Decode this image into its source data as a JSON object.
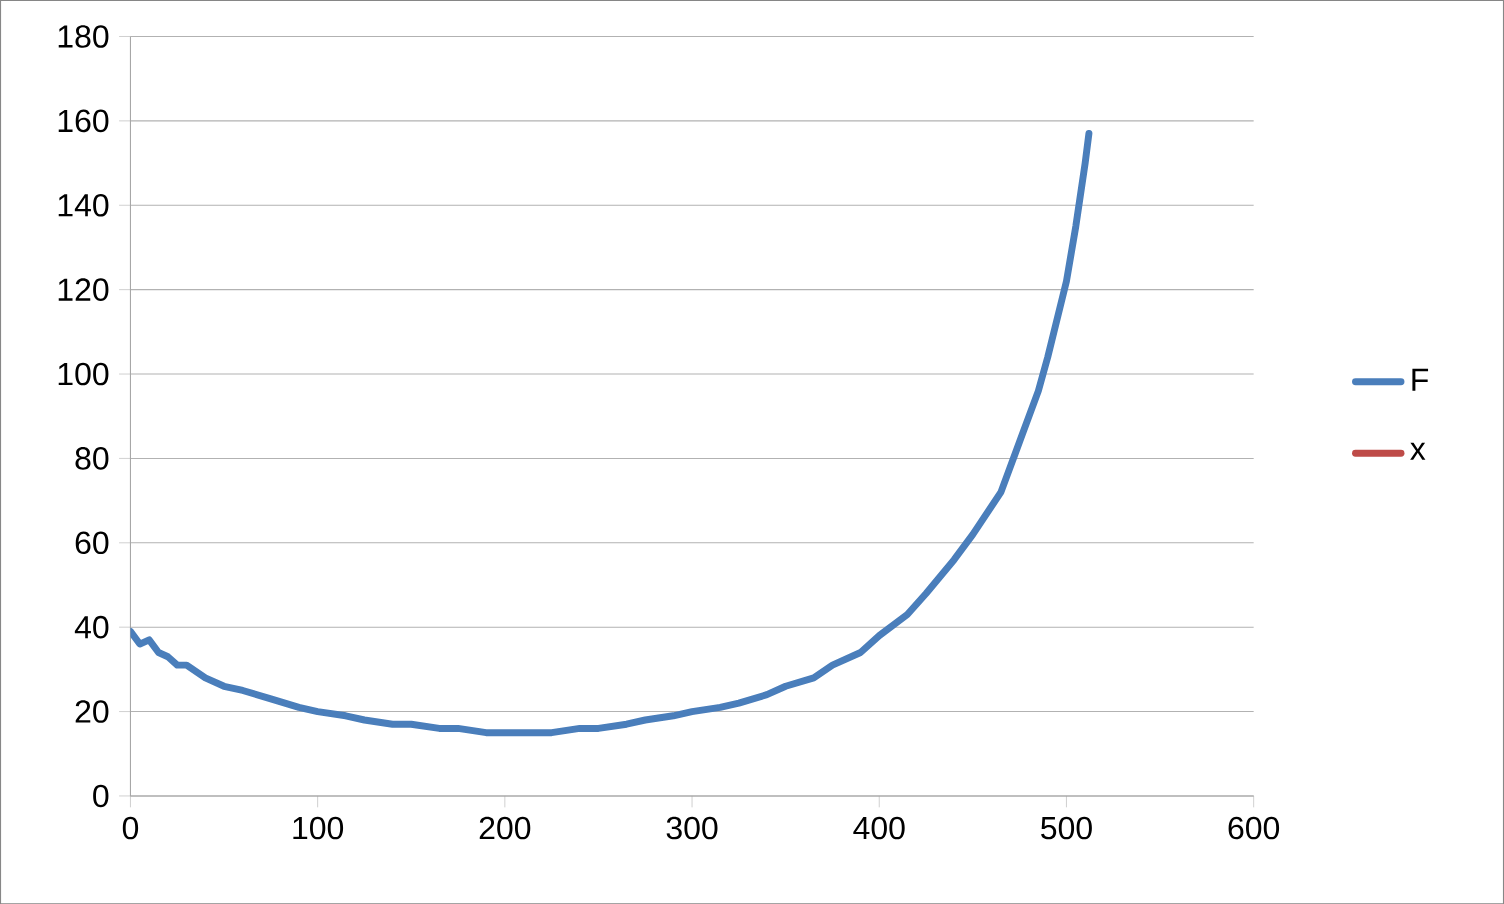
{
  "chart_data": {
    "type": "line",
    "x": [
      0,
      5,
      10,
      15,
      20,
      25,
      30,
      40,
      50,
      60,
      75,
      90,
      100,
      115,
      125,
      140,
      150,
      165,
      175,
      190,
      200,
      210,
      225,
      240,
      250,
      265,
      275,
      290,
      300,
      315,
      325,
      340,
      350,
      365,
      375,
      390,
      400,
      415,
      425,
      440,
      450,
      465,
      475,
      485,
      490,
      500,
      505,
      510,
      512
    ],
    "series": [
      {
        "name": "F",
        "color": "#4a7ebb",
        "values": [
          39,
          36,
          37,
          34,
          33,
          31,
          31,
          28,
          26,
          25,
          23,
          21,
          20,
          19,
          18,
          17,
          17,
          16,
          16,
          15,
          15,
          15,
          15,
          16,
          16,
          17,
          18,
          19,
          20,
          21,
          22,
          24,
          26,
          28,
          31,
          34,
          38,
          43,
          48,
          56,
          62,
          72,
          84,
          96,
          104,
          122,
          135,
          150,
          157
        ]
      },
      {
        "name": "x",
        "color": "#be4b48",
        "values": [
          null,
          null,
          null,
          null,
          null,
          null,
          null,
          null,
          null,
          null,
          null,
          null,
          null,
          null,
          null,
          null,
          null,
          null,
          null,
          null,
          null,
          null,
          null,
          null,
          null,
          null,
          null,
          null,
          null,
          null,
          null,
          null,
          null,
          null,
          null,
          null,
          null,
          null,
          null,
          null,
          null,
          null,
          null,
          null,
          null,
          null,
          null,
          null,
          null
        ]
      }
    ],
    "xlim": [
      0,
      600
    ],
    "ylim": [
      0,
      180
    ],
    "xticks": [
      0,
      100,
      200,
      300,
      400,
      500,
      600
    ],
    "yticks": [
      0,
      20,
      40,
      60,
      80,
      100,
      120,
      140,
      160,
      180
    ],
    "grid": "y",
    "legend": "right",
    "marker": "none",
    "line_style": "solid"
  }
}
